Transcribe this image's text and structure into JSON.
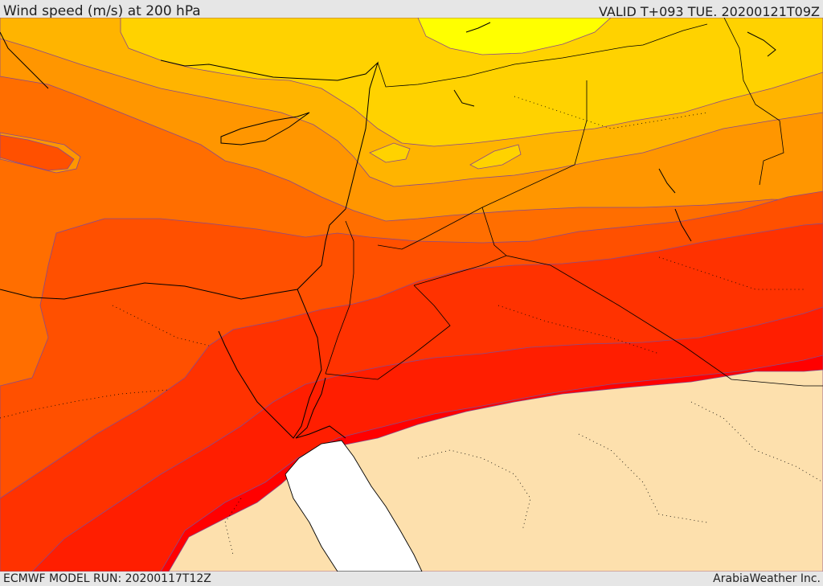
{
  "header": {
    "title": "Wind speed (m/s) at 200 hPa",
    "valid": "VALID T+093 TUE. 20200121T09Z"
  },
  "footer": {
    "model_run": "ECMWF MODEL RUN: 20200117T12Z",
    "brand": "ArabiaWeather Inc."
  },
  "palette": {
    "band_1": "#ffff00",
    "band_2": "#ffd200",
    "band_3": "#ffb400",
    "band_4": "#ff9600",
    "band_5": "#ff6e00",
    "band_6": "#ff5000",
    "band_7": "#ff3200",
    "band_8": "#ff1e00",
    "band_9": "#ff0000",
    "land_below_threshold": "#fde0ad",
    "sea_below_threshold": "#ffffff"
  }
}
